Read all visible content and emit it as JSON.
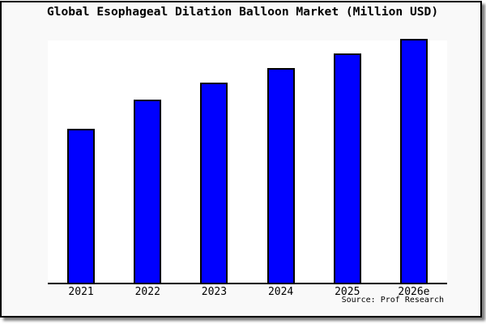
{
  "title": "Global Esophageal Dilation Balloon Market (Million USD)",
  "source": "Source: Prof Research",
  "colors": {
    "bar_fill": "#0000ff",
    "bar_border": "#000000",
    "plot_bg": "#ffffff",
    "page_bg": "#f9f9f9",
    "frame_border": "#000000",
    "axis_line": "#000000",
    "text": "#000000"
  },
  "chart_data": {
    "type": "bar",
    "title": "Global Esophageal Dilation Balloon Market (Million USD)",
    "categories": [
      "2021",
      "2022",
      "2023",
      "2024",
      "2025",
      "2026e"
    ],
    "values": [
      63,
      75,
      82,
      88,
      94,
      100
    ],
    "value_scale": "relative units; no y-axis tick labels are shown, tallest bar (2026e) = 100",
    "xlabel": "",
    "ylabel": "",
    "ylim": [
      0,
      100
    ],
    "grid": false,
    "legend": false,
    "source": "Source: Prof Research"
  }
}
